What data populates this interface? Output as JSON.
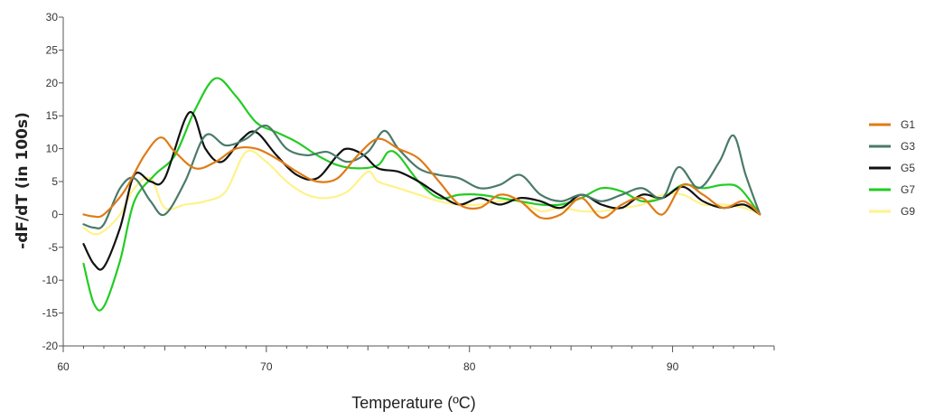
{
  "chart_data": {
    "type": "line",
    "xlabel": "Temperature (ºC)",
    "ylabel": "-dF/dT (in 100s)",
    "xlim": [
      60,
      95
    ],
    "ylim": [
      -20,
      30
    ],
    "xticks": [
      60,
      70,
      80,
      90
    ],
    "yticks": [
      -20,
      -15,
      -10,
      -5,
      0,
      5,
      10,
      15,
      20,
      25,
      30
    ],
    "legend_position": "right",
    "grid": false,
    "series": [
      {
        "name": "G1",
        "color": "#e07b17",
        "x": [
          61,
          61.5,
          62,
          63,
          64,
          64.8,
          65.5,
          66.5,
          67.5,
          68.5,
          69.5,
          70.5,
          71.5,
          72.5,
          73.5,
          74.5,
          75.5,
          76.5,
          77.5,
          78.5,
          79.5,
          80.5,
          81.5,
          82.5,
          83.5,
          84.5,
          85.5,
          86.5,
          87.5,
          88.5,
          89.5,
          90.5,
          91.5,
          92.5,
          93.5,
          94.3
        ],
        "values": [
          0,
          -0.3,
          0,
          3.5,
          9,
          11.7,
          9.5,
          7,
          8,
          10,
          10,
          8.5,
          6.5,
          5,
          5.5,
          9,
          11.5,
          10,
          8.5,
          5,
          1.5,
          1,
          3,
          2,
          -0.5,
          0,
          2.5,
          -0.5,
          1.5,
          2.5,
          0,
          4.5,
          3,
          1,
          2,
          0
        ]
      },
      {
        "name": "G3",
        "color": "#4a7a6a",
        "x": [
          61,
          61.5,
          62,
          62.8,
          63.5,
          64.3,
          65,
          66,
          67,
          68,
          69,
          70,
          71,
          72,
          73,
          74,
          75,
          75.8,
          76.5,
          77.5,
          78.5,
          79.5,
          80.5,
          81.5,
          82.5,
          83.5,
          84.5,
          85.5,
          86.5,
          87.5,
          88.5,
          89.5,
          90.3,
          91.3,
          92.3,
          93,
          93.6,
          94.3
        ],
        "values": [
          -1.5,
          -2,
          -1.5,
          4,
          5.5,
          2,
          0,
          5,
          12,
          10.5,
          11.5,
          13.5,
          10,
          9,
          9.5,
          8,
          9.5,
          12.7,
          10,
          7,
          6,
          5.5,
          4,
          4.5,
          6,
          3,
          2,
          3,
          2,
          3,
          4,
          2.5,
          7.2,
          4,
          8,
          12,
          6,
          0
        ]
      },
      {
        "name": "G5",
        "color": "#111111",
        "x": [
          61,
          61.5,
          62,
          62.8,
          63.5,
          64.3,
          65,
          66.2,
          67,
          67.8,
          68.8,
          69.5,
          70.5,
          71.5,
          72.5,
          73.5,
          74,
          74.8,
          75.5,
          76.5,
          77.5,
          78.5,
          79.5,
          80.5,
          81.5,
          82.5,
          83.5,
          84.5,
          85.5,
          86.5,
          87.5,
          88.5,
          89.5,
          90.5,
          91.5,
          92.5,
          93.5,
          94.3
        ],
        "values": [
          -4.5,
          -7.5,
          -8,
          -2,
          6,
          5,
          5.5,
          15.5,
          10,
          8,
          11.5,
          12.5,
          9,
          6,
          5.5,
          9,
          10,
          9,
          7,
          6.5,
          5,
          3,
          1.5,
          2.5,
          1.5,
          2.5,
          2,
          1,
          3,
          1.5,
          1,
          3,
          2.5,
          4.2,
          2,
          1,
          1.5,
          0
        ]
      },
      {
        "name": "G7",
        "color": "#22cc22",
        "x": [
          61,
          61.5,
          62,
          62.8,
          63.5,
          64.5,
          65.5,
          66.5,
          67.5,
          68.5,
          69.5,
          70.5,
          71.5,
          72.5,
          73.5,
          74.5,
          75.5,
          76,
          76.5,
          77.5,
          78.5,
          79.5,
          80.5,
          81.5,
          82.5,
          83.5,
          84.5,
          85.5,
          86.5,
          87.5,
          88.5,
          89.5,
          90.5,
          91.5,
          92.5,
          93.3,
          94.3
        ],
        "values": [
          -7.5,
          -13.5,
          -14,
          -7,
          2,
          6,
          9,
          16,
          20.7,
          18,
          14,
          12.5,
          11,
          9,
          7.5,
          7,
          7.5,
          9.5,
          9,
          5,
          2.5,
          3,
          3,
          2.5,
          2,
          1.5,
          1.5,
          2.5,
          4,
          3.5,
          2,
          2.5,
          4.5,
          4,
          4.5,
          4,
          0
        ]
      },
      {
        "name": "G9",
        "color": "#fff28a",
        "x": [
          61,
          61.5,
          62,
          62.8,
          63.5,
          64.3,
          65,
          66,
          67,
          68,
          69,
          70,
          71,
          72,
          73,
          74,
          75,
          75.5,
          76.5,
          77.5,
          78.5,
          79.5,
          80.5,
          81.5,
          82.5,
          83.5,
          84.5,
          85.5,
          86.5,
          87.5,
          88.5,
          89.5,
          90.5,
          91.5,
          92.5,
          93.5,
          94.3
        ],
        "values": [
          -2,
          -3,
          -2.5,
          0,
          4,
          5.5,
          1,
          1.5,
          2,
          3.5,
          9.5,
          8,
          5,
          3,
          2.5,
          3.5,
          6.5,
          5,
          4,
          3,
          2,
          1.5,
          1.5,
          2,
          2,
          0.5,
          1,
          0.5,
          0.5,
          1,
          1.5,
          3,
          3,
          1.5,
          1.5,
          1,
          0
        ]
      }
    ]
  }
}
